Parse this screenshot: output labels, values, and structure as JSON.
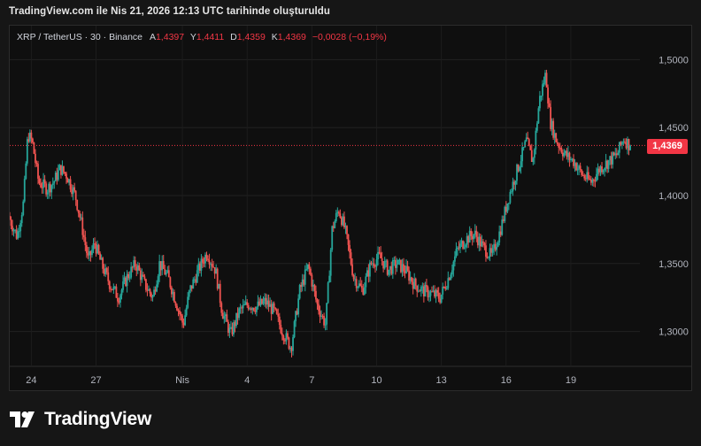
{
  "header": {
    "created_text": "TradingView.com ile Nis 21, 2026 12:13 UTC tarihinde oluşturuldu"
  },
  "legend": {
    "symbol": "XRP / TetherUS · 30 · Binance",
    "open_label": "A",
    "open": "1,4397",
    "high_label": "Y",
    "high": "1,4411",
    "low_label": "D",
    "low": "1,4359",
    "close_label": "K",
    "close": "1,4369",
    "change": "−0,0028 (−0,19%)"
  },
  "last_price_tag": "1,4369",
  "brand": {
    "name": "TradingView",
    "logo_icon": "tradingview-logo-icon"
  },
  "colors": {
    "up": "#26a69a",
    "down": "#ef5350",
    "background": "#0f0f0f",
    "price_tag": "#f23645",
    "grid": "#222222",
    "axis_text": "#b2b5be"
  },
  "chart_data": {
    "type": "candlestick",
    "symbol": "XRP / TetherUS",
    "interval": "30",
    "exchange": "Binance",
    "y_axis": {
      "ticks": [
        1.3,
        1.35,
        1.4,
        1.45,
        1.5
      ],
      "tick_labels": [
        "1,3000",
        "1,3500",
        "1,4000",
        "1,4500",
        "1,5000"
      ],
      "range": [
        1.275,
        1.525
      ]
    },
    "x_axis": {
      "tick_labels": [
        "24",
        "27",
        "Nis",
        "4",
        "7",
        "10",
        "13",
        "16",
        "19"
      ],
      "tick_day_index": [
        1,
        4,
        8,
        11,
        14,
        17,
        20,
        23,
        26
      ],
      "range_days": [
        0,
        29.2
      ]
    },
    "last_price": 1.4369,
    "price_path": [
      [
        0.0,
        1.385
      ],
      [
        0.4,
        1.37
      ],
      [
        0.7,
        1.395
      ],
      [
        0.9,
        1.445
      ],
      [
        1.1,
        1.44
      ],
      [
        1.4,
        1.41
      ],
      [
        1.8,
        1.405
      ],
      [
        2.1,
        1.41
      ],
      [
        2.4,
        1.42
      ],
      [
        2.7,
        1.415
      ],
      [
        3.1,
        1.4
      ],
      [
        3.4,
        1.378
      ],
      [
        3.7,
        1.352
      ],
      [
        4.0,
        1.365
      ],
      [
        4.3,
        1.35
      ],
      [
        4.7,
        1.335
      ],
      [
        5.1,
        1.325
      ],
      [
        5.5,
        1.34
      ],
      [
        5.9,
        1.35
      ],
      [
        6.3,
        1.335
      ],
      [
        6.7,
        1.325
      ],
      [
        7.0,
        1.35
      ],
      [
        7.4,
        1.34
      ],
      [
        7.8,
        1.32
      ],
      [
        8.1,
        1.305
      ],
      [
        8.4,
        1.33
      ],
      [
        8.8,
        1.345
      ],
      [
        9.2,
        1.358
      ],
      [
        9.6,
        1.345
      ],
      [
        9.9,
        1.315
      ],
      [
        10.3,
        1.298
      ],
      [
        10.7,
        1.315
      ],
      [
        11.1,
        1.32
      ],
      [
        11.5,
        1.318
      ],
      [
        11.9,
        1.322
      ],
      [
        12.3,
        1.315
      ],
      [
        12.7,
        1.3
      ],
      [
        13.1,
        1.288
      ],
      [
        13.5,
        1.33
      ],
      [
        13.9,
        1.348
      ],
      [
        14.3,
        1.32
      ],
      [
        14.7,
        1.305
      ],
      [
        15.0,
        1.375
      ],
      [
        15.3,
        1.39
      ],
      [
        15.6,
        1.375
      ],
      [
        16.0,
        1.34
      ],
      [
        16.4,
        1.33
      ],
      [
        16.8,
        1.35
      ],
      [
        17.2,
        1.355
      ],
      [
        17.6,
        1.345
      ],
      [
        18.0,
        1.35
      ],
      [
        18.4,
        1.345
      ],
      [
        18.8,
        1.335
      ],
      [
        19.2,
        1.33
      ],
      [
        19.6,
        1.328
      ],
      [
        20.0,
        1.325
      ],
      [
        20.4,
        1.34
      ],
      [
        20.8,
        1.36
      ],
      [
        21.2,
        1.368
      ],
      [
        21.6,
        1.372
      ],
      [
        22.0,
        1.362
      ],
      [
        22.4,
        1.355
      ],
      [
        22.8,
        1.375
      ],
      [
        23.2,
        1.4
      ],
      [
        23.6,
        1.42
      ],
      [
        24.0,
        1.44
      ],
      [
        24.3,
        1.425
      ],
      [
        24.6,
        1.47
      ],
      [
        24.9,
        1.49
      ],
      [
        25.1,
        1.455
      ],
      [
        25.4,
        1.44
      ],
      [
        25.8,
        1.43
      ],
      [
        26.2,
        1.425
      ],
      [
        26.6,
        1.415
      ],
      [
        27.0,
        1.41
      ],
      [
        27.4,
        1.42
      ],
      [
        27.8,
        1.425
      ],
      [
        28.2,
        1.43
      ],
      [
        28.5,
        1.442
      ],
      [
        28.8,
        1.4369
      ]
    ]
  }
}
